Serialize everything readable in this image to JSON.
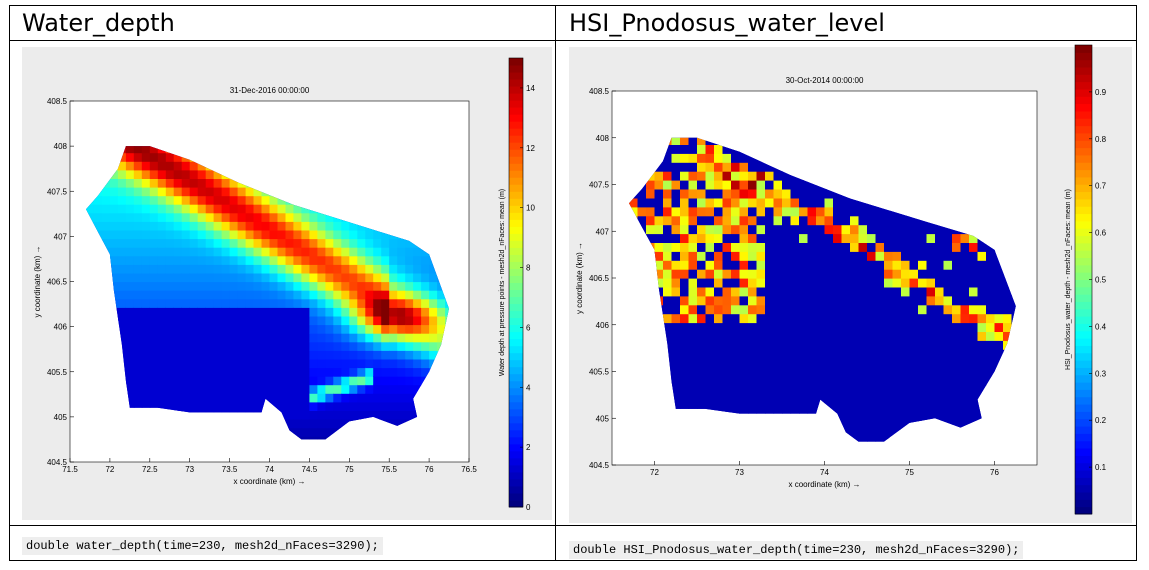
{
  "panels": [
    {
      "heading": "Water_depth",
      "code": "double water_depth(time=230, mesh2d_nFaces=3290);"
    },
    {
      "heading": "HSI_Pnodosus_water_level",
      "code": "double HSI_Pnodosus_water_depth(time=230, mesh2d_nFaces=3290);"
    }
  ],
  "chart_data": [
    {
      "type": "heatmap",
      "title": "31-Dec-2016 00:00:00",
      "xlabel": "x coordinate (km) →",
      "ylabel": "y coordinate (km) →",
      "colorbar_label": "Water depth at pressure points - mesh2d_nFaces: mean (m)",
      "xlim": [
        71.5,
        76.5
      ],
      "ylim": [
        404.5,
        408.5
      ],
      "xticks": [
        "71.5",
        "72",
        "72.5",
        "73",
        "73.5",
        "74",
        "74.5",
        "75",
        "75.5",
        "76",
        "76.5"
      ],
      "yticks": [
        "404.5",
        "405",
        "405.5",
        "406",
        "406.5",
        "407",
        "407.5",
        "408",
        "408.5"
      ],
      "colorbar_range": [
        0,
        15
      ],
      "colorbar_ticks": [
        "0",
        "2",
        "4",
        "6",
        "8",
        "10",
        "12",
        "14"
      ],
      "colormap": "jet",
      "grid": false
    },
    {
      "type": "heatmap",
      "title": "30-Oct-2014 00:00:00",
      "xlabel": "x coordinate (km) →",
      "ylabel": "y coordinate (km) →",
      "colorbar_label": "HSI_Pnodosus_water_depth - mesh2d_nFaces: mean (m)",
      "xlim": [
        71.5,
        76.5
      ],
      "ylim": [
        404.5,
        408.5
      ],
      "xticks": [
        "72",
        "73",
        "74",
        "75",
        "76"
      ],
      "yticks": [
        "404.5",
        "405",
        "405.5",
        "406",
        "406.5",
        "407",
        "407.5",
        "408",
        "408.5"
      ],
      "colorbar_range": [
        0,
        1
      ],
      "colorbar_ticks": [
        "0.1",
        "0.2",
        "0.3",
        "0.4",
        "0.5",
        "0.6",
        "0.7",
        "0.8",
        "0.9"
      ],
      "colormap": "jet",
      "grid": false
    }
  ]
}
